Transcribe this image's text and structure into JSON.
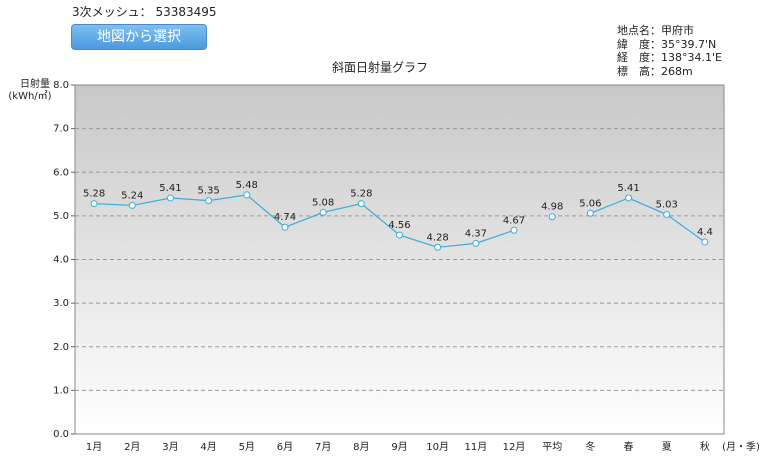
{
  "header": {
    "mesh_label": "3次メッシュ：",
    "mesh_code": "53383495",
    "button": "地図から選択"
  },
  "info": [
    "地点名：甲府市",
    "緯　度：35°39.7'N",
    "経　度：138°34.1'E",
    "標　高：268m"
  ],
  "chart_data": {
    "type": "line",
    "title": "斜面日射量グラフ",
    "y_label": [
      "日射量",
      "(kWh/㎡)"
    ],
    "x_label": "(月・季)",
    "categories": [
      "1月",
      "2月",
      "3月",
      "4月",
      "5月",
      "6月",
      "7月",
      "8月",
      "9月",
      "10月",
      "11月",
      "12月",
      "平均",
      "冬",
      "春",
      "夏",
      "秋"
    ],
    "series": [
      {
        "color": "#3aaed8",
        "values": [
          5.28,
          5.24,
          5.41,
          5.35,
          5.48,
          4.74,
          5.08,
          5.28,
          4.56,
          4.28,
          4.37,
          4.67,
          null,
          null,
          null,
          null,
          null
        ]
      },
      {
        "color": "#3aaed8",
        "values": [
          null,
          null,
          null,
          null,
          null,
          null,
          null,
          null,
          null,
          null,
          null,
          null,
          4.98,
          null,
          null,
          null,
          null
        ]
      },
      {
        "color": "#3aaed8",
        "values": [
          null,
          null,
          null,
          null,
          null,
          null,
          null,
          null,
          null,
          null,
          null,
          null,
          null,
          5.06,
          5.41,
          5.03,
          4.4
        ]
      }
    ],
    "ylim": [
      0,
      8
    ],
    "yticks": [
      {
        "value": 0,
        "label": "0.0"
      },
      {
        "value": 1,
        "label": "1.0"
      },
      {
        "value": 2,
        "label": "2.0"
      },
      {
        "value": 3,
        "label": "3.0"
      },
      {
        "value": 4,
        "label": "4.0"
      },
      {
        "value": 5,
        "label": "5.0"
      },
      {
        "value": 6,
        "label": "6.0"
      },
      {
        "value": 7,
        "label": "7.0"
      },
      {
        "value": 8,
        "label": "8.0"
      }
    ],
    "grid": true
  }
}
